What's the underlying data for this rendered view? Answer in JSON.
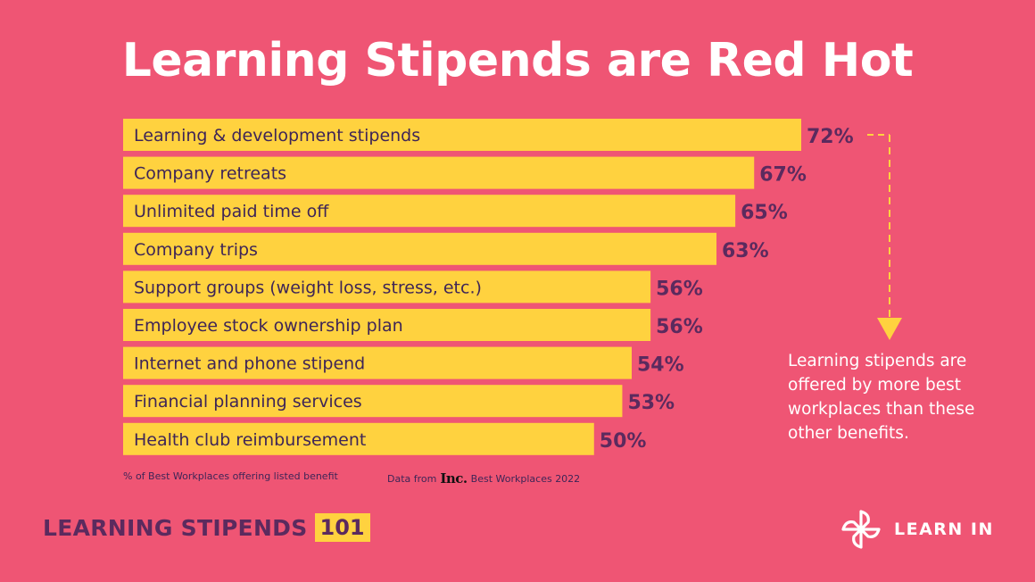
{
  "title": "Learning Stipends are Red Hot",
  "colors": {
    "background": "#EF5574",
    "bar": "#FFD23F",
    "value_label": "#5B2A5E",
    "callout_arrow": "#FFD23F",
    "text_light": "#FFFFFF"
  },
  "chart_data": {
    "type": "bar",
    "orientation": "horizontal",
    "categories": [
      "Learning & development stipends",
      "Company retreats",
      "Unlimited paid time off",
      "Company trips",
      "Support groups (weight loss, stress, etc.)",
      "Employee stock ownership plan",
      "Internet and phone stipend",
      "Financial planning services",
      "Health club reimbursement"
    ],
    "values": [
      72,
      67,
      65,
      63,
      56,
      56,
      54,
      53,
      50
    ],
    "value_labels": [
      "72%",
      "67%",
      "65%",
      "63%",
      "56%",
      "56%",
      "54%",
      "53%",
      "50%"
    ],
    "unit": "%",
    "grid": false,
    "legend": "none"
  },
  "footnotes": {
    "measure": "% of Best Workplaces offering listed benefit",
    "source_prefix": "Data from",
    "source_logo": "Inc.",
    "source_suffix": "Best Workplaces 2022"
  },
  "callout": {
    "text": "Learning stipends are offered by more best workplaces than these other benefits.",
    "icon": "dashed-arrow-down-icon"
  },
  "branding": {
    "series_name": "LEARNING STIPENDS",
    "series_badge": "101",
    "company_name": "LEARN IN",
    "company_icon": "pinwheel-logo-icon"
  }
}
